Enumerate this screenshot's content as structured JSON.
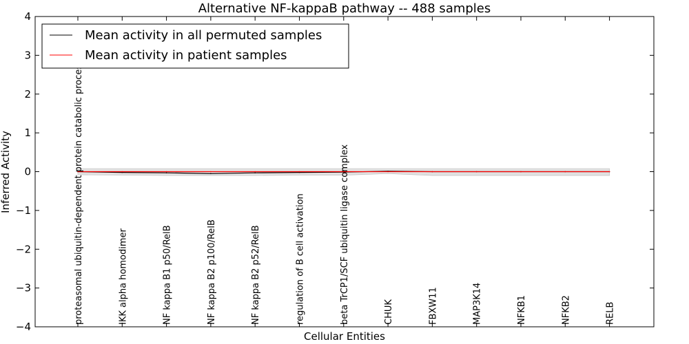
{
  "chart_data": {
    "type": "line",
    "title": "Alternative NF-kappaB pathway -- 488 samples",
    "xlabel": "Cellular Entities",
    "ylabel": "Inferred Activity",
    "ylim": [
      -4,
      4
    ],
    "yticks": [
      -4,
      -3,
      -2,
      -1,
      0,
      1,
      2,
      3,
      4
    ],
    "ytick_labels": [
      "−4",
      "−3",
      "−2",
      "−1",
      "0",
      "1",
      "2",
      "3",
      "4"
    ],
    "grid": false,
    "legend_position": "top-left",
    "categories": [
      "proteasomal ubiquitin-dependent protein catabolic process",
      "IKK alpha homodimer",
      "NF kappa B1 p50/RelB",
      "NF kappa B2 p100/RelB",
      "NF kappa B2 p52/RelB",
      "regulation of B cell activation",
      "beta TrCP1/SCF ubiquitin ligase complex",
      "CHUK",
      "FBXW11",
      "MAP3K14",
      "NFKB1",
      "NFKB2",
      "RELB"
    ],
    "series": [
      {
        "name": "Mean activity in all permuted samples",
        "color": "#000000",
        "values": [
          0.0,
          -0.02,
          -0.03,
          -0.05,
          -0.03,
          -0.02,
          -0.01,
          0.01,
          0.0,
          0.0,
          0.0,
          0.0,
          0.0
        ]
      },
      {
        "name": "Mean activity in patient samples",
        "color": "#ff0000",
        "values": [
          0.0,
          0.0,
          0.0,
          0.0,
          0.0,
          0.0,
          0.0,
          0.0,
          0.0,
          0.0,
          0.0,
          0.0,
          0.0
        ]
      }
    ],
    "band": {
      "color": "#d9d9d9",
      "upper": [
        0.08,
        0.08,
        0.08,
        0.08,
        0.08,
        0.08,
        0.08,
        0.08,
        0.08,
        0.08,
        0.08,
        0.08,
        0.08
      ],
      "lower": [
        -0.08,
        -0.09,
        -0.1,
        -0.1,
        -0.1,
        -0.09,
        -0.09,
        -0.05,
        -0.1,
        -0.1,
        -0.1,
        -0.1,
        -0.1
      ]
    }
  }
}
